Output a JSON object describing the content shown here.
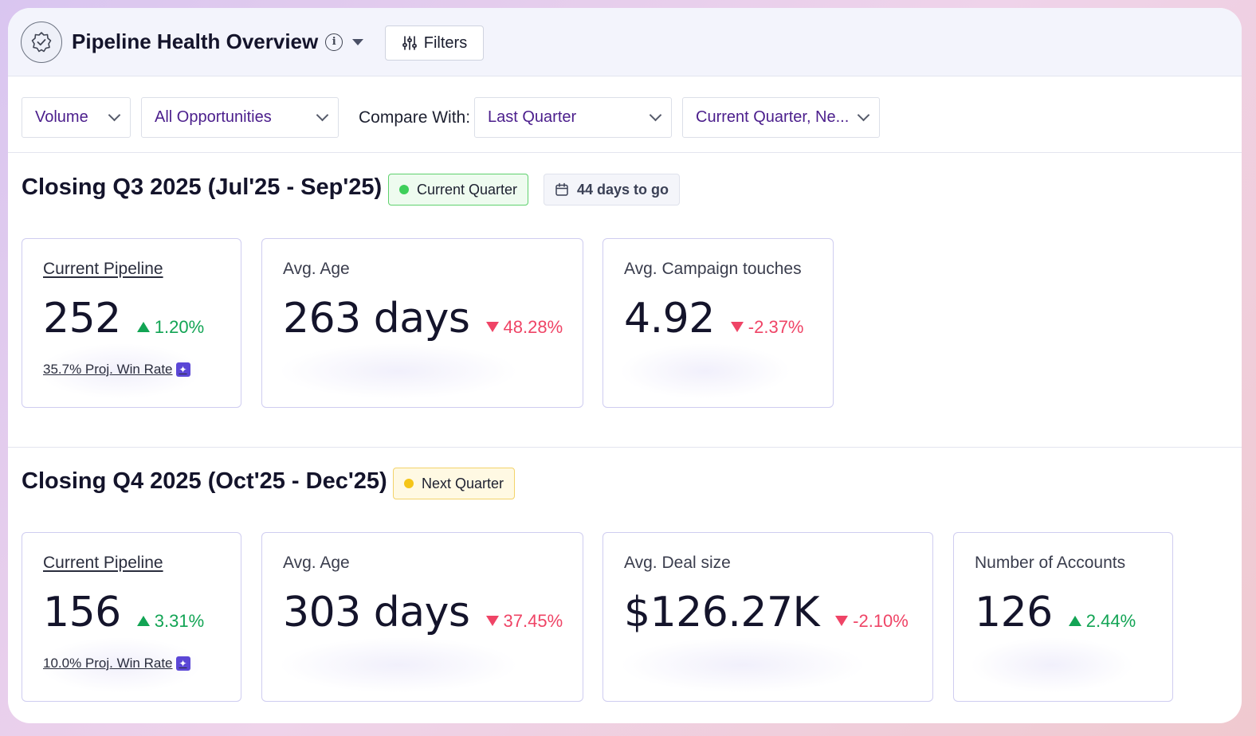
{
  "header": {
    "title": "Pipeline Health Overview",
    "filters_label": "Filters"
  },
  "toolbar": {
    "metric_select": "Volume",
    "scope_select": "All Opportunities",
    "compare_label": "Compare With:",
    "compare_select": "Last Quarter",
    "period_select": "Current Quarter, Ne..."
  },
  "sections": [
    {
      "title": "Closing Q3 2025 (Jul'25 - Sep'25)",
      "badge": "Current Quarter",
      "badge_color": "#3ecf5a",
      "days_badge": "44 days to go",
      "cards": [
        {
          "label": "Current Pipeline",
          "value": "252",
          "delta": "1.20%",
          "trend": "up",
          "footnote": "35.7% Proj. Win Rate"
        },
        {
          "label": "Avg. Age",
          "value": "263 days",
          "delta": "48.28%",
          "trend": "down"
        },
        {
          "label": "Avg. Campaign touches",
          "value": "4.92",
          "delta": "-2.37%",
          "trend": "down"
        }
      ]
    },
    {
      "title": "Closing Q4 2025 (Oct'25 - Dec'25)",
      "badge": "Next Quarter",
      "badge_color": "#f5c518",
      "cards": [
        {
          "label": "Current Pipeline",
          "value": "156",
          "delta": "3.31%",
          "trend": "up",
          "footnote": "10.0% Proj. Win Rate"
        },
        {
          "label": "Avg. Age",
          "value": "303 days",
          "delta": "37.45%",
          "trend": "down"
        },
        {
          "label": "Avg. Deal size",
          "value": "$126.27K",
          "delta": "-2.10%",
          "trend": "down"
        },
        {
          "label": "Number of Accounts",
          "value": "126",
          "delta": "2.44%",
          "trend": "up"
        }
      ]
    }
  ]
}
